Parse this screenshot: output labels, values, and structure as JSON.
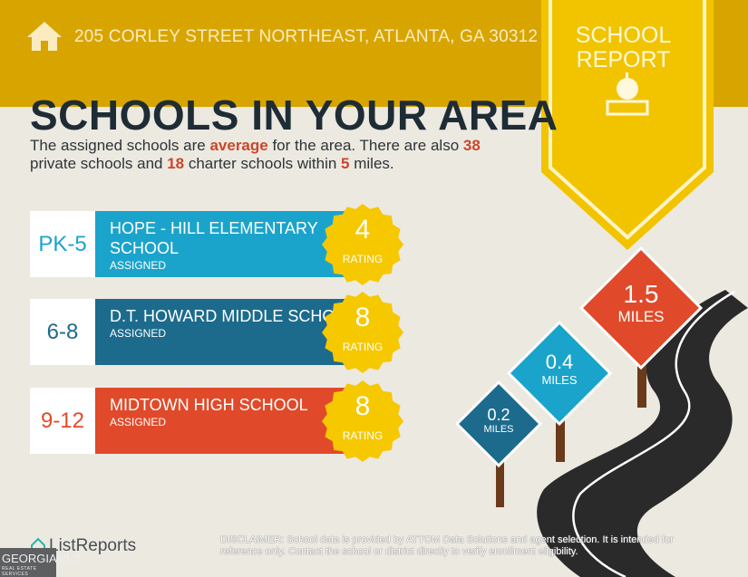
{
  "header": {
    "address": "205 CORLEY STREET NORTHEAST, ATLANTA, GA 30312",
    "home_icon": "house-icon"
  },
  "badge": {
    "line1": "SCHOOL",
    "line2": "REPORT",
    "icon": "apple-on-book-icon"
  },
  "title": "SCHOOLS IN YOUR AREA",
  "summary": {
    "p1": "The assigned schools are ",
    "quality": "average",
    "p2": " for the area. There are also ",
    "private_count": "38",
    "p3": " private schools and ",
    "charter_count": "18",
    "p4": " charter schools within ",
    "radius": "5",
    "p5": " miles."
  },
  "schools": [
    {
      "grades": "PK-5",
      "name": "Hope - Hill Elementary School",
      "status": "ASSIGNED",
      "rating": "4",
      "rating_label": "RATING",
      "color": "#1ba4cb",
      "grade_color": "#1ba4cb"
    },
    {
      "grades": "6-8",
      "name": "D.T. Howard Middle School",
      "status": "ASSIGNED",
      "rating": "8",
      "rating_label": "RATING",
      "color": "#1c6b8d",
      "grade_color": "#1c6b8d"
    },
    {
      "grades": "9-12",
      "name": "Midtown High School",
      "status": "ASSIGNED",
      "rating": "8",
      "rating_label": "RATING",
      "color": "#e04a2a",
      "grade_color": "#e04a2a"
    }
  ],
  "signs": [
    {
      "distance": "1.5",
      "unit": "MILES",
      "color": "#e04a2a"
    },
    {
      "distance": "0.4",
      "unit": "MILES",
      "color": "#1ba4cb"
    },
    {
      "distance": "0.2",
      "unit": "MILES",
      "color": "#1c6b8d"
    }
  ],
  "footer": {
    "brand": "ListReports",
    "disclaimer_label": "DISCLAIMER:",
    "disclaimer": " School data is provided by ATTOM Data Solutions and agent selection. It is intended for reference only. Contact the school or district directly to verify enrollment eligibility.",
    "mls": "GEORGIAMLS",
    "mls_sub": "REAL ESTATE SERVICES"
  },
  "colors": {
    "band": "#d8a500",
    "badge": "#f2c400",
    "background": "#ece9e1",
    "title": "#1e2c35",
    "highlight": "#c9472a"
  }
}
